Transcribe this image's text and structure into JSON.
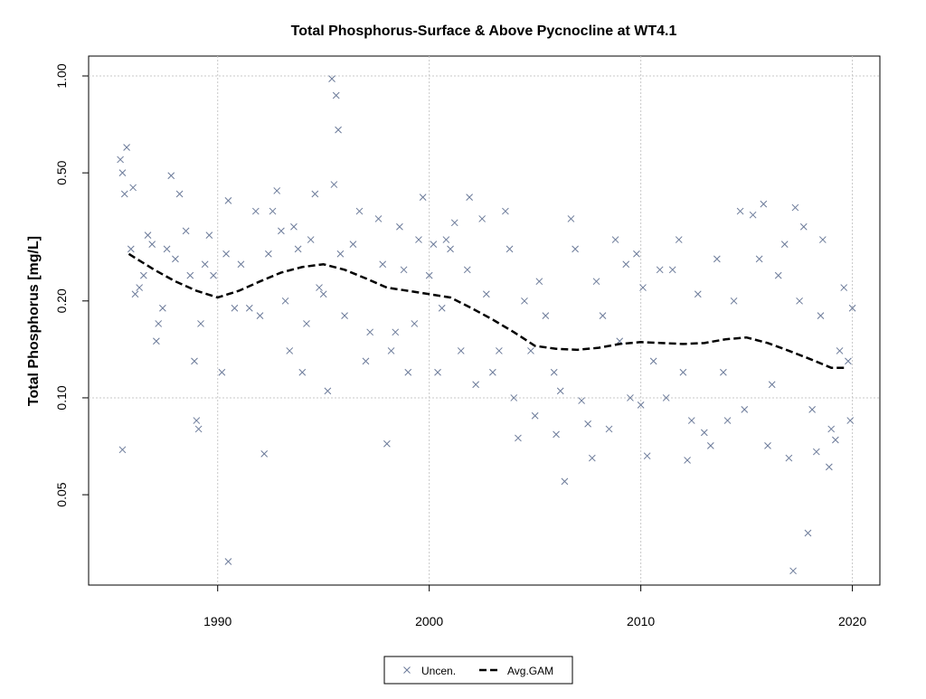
{
  "chart_data": {
    "type": "scatter",
    "title": "Total Phosphorus-Surface & Above Pycnocline at WT4.1",
    "y_label": "Total Phosphorus [mg/L]",
    "xlim": [
      1983.9,
      2021.3
    ],
    "xticks": [
      1990,
      2000,
      2010,
      2020
    ],
    "ylim": [
      0.0262,
      1.153
    ],
    "ylog": true,
    "yticks": [
      0.05,
      {
        "value": 0.1,
        "label": "0.10"
      },
      {
        "value": 0.2,
        "label": "0.20"
      },
      {
        "value": 0.5,
        "label": "0.50"
      },
      {
        "value": 1,
        "label": "1.00"
      }
    ],
    "grid": true,
    "ygrid": [
      0.1,
      1
    ],
    "legend": "bottom",
    "series": [
      {
        "name": "Uncen.",
        "type": "scatter",
        "color": "#6b7a99",
        "x": [
          1985.4,
          1985.5,
          1985.6,
          1985.7,
          1985.5,
          1985.9,
          1986.0,
          1986.1,
          1986.3,
          1986.5,
          1986.7,
          1986.9,
          1987.1,
          1987.2,
          1987.4,
          1987.6,
          1987.8,
          1988.0,
          1988.2,
          1988.5,
          1988.7,
          1988.9,
          1989.0,
          1989.1,
          1989.2,
          1989.4,
          1989.6,
          1989.8,
          1990.2,
          1990.4,
          1990.5,
          1990.5,
          1990.8,
          1991.1,
          1991.5,
          1991.8,
          1992.0,
          1992.2,
          1992.4,
          1992.6,
          1992.8,
          1993.0,
          1993.2,
          1993.4,
          1993.6,
          1993.8,
          1994.0,
          1994.2,
          1994.4,
          1994.6,
          1994.8,
          1995.0,
          1995.2,
          1995.4,
          1995.6,
          1995.7,
          1995.5,
          1995.8,
          1996.0,
          1996.4,
          1996.7,
          1997.0,
          1997.2,
          1997.6,
          1997.8,
          1998.0,
          1998.2,
          1998.4,
          1998.6,
          1998.8,
          1999.0,
          1999.3,
          1999.5,
          1999.7,
          2000.0,
          2000.2,
          2000.4,
          2000.6,
          2000.8,
          2001.0,
          2001.2,
          2001.5,
          2001.8,
          2001.9,
          2002.2,
          2002.5,
          2002.7,
          2003.0,
          2003.3,
          2003.6,
          2003.8,
          2004.0,
          2004.2,
          2004.5,
          2004.8,
          2005.0,
          2005.2,
          2005.5,
          2005.9,
          2006.0,
          2006.2,
          2006.4,
          2006.7,
          2006.9,
          2007.2,
          2007.5,
          2007.7,
          2007.9,
          2008.2,
          2008.5,
          2008.8,
          2009.0,
          2009.3,
          2009.5,
          2009.8,
          2010.0,
          2010.1,
          2010.3,
          2010.6,
          2010.9,
          2011.2,
          2011.5,
          2011.8,
          2012.0,
          2012.2,
          2012.4,
          2012.7,
          2013.0,
          2013.3,
          2013.6,
          2013.9,
          2014.1,
          2014.4,
          2014.7,
          2014.9,
          2015.3,
          2015.6,
          2015.8,
          2016.0,
          2016.2,
          2016.5,
          2016.8,
          2017.0,
          2017.2,
          2017.3,
          2017.5,
          2017.7,
          2017.9,
          2018.1,
          2018.3,
          2018.5,
          2018.6,
          2018.9,
          2019.0,
          2019.2,
          2019.4,
          2019.6,
          2019.8,
          2019.9,
          2020.0
        ],
        "values": [
          0.55,
          0.5,
          0.43,
          0.6,
          0.069,
          0.29,
          0.45,
          0.21,
          0.22,
          0.24,
          0.32,
          0.3,
          0.15,
          0.17,
          0.19,
          0.29,
          0.49,
          0.27,
          0.43,
          0.33,
          0.24,
          0.13,
          0.085,
          0.08,
          0.17,
          0.26,
          0.32,
          0.24,
          0.12,
          0.28,
          0.41,
          0.031,
          0.19,
          0.26,
          0.19,
          0.38,
          0.18,
          0.067,
          0.28,
          0.38,
          0.44,
          0.33,
          0.2,
          0.14,
          0.34,
          0.29,
          0.12,
          0.17,
          0.31,
          0.43,
          0.22,
          0.21,
          0.105,
          0.98,
          0.87,
          0.68,
          0.46,
          0.28,
          0.18,
          0.3,
          0.38,
          0.13,
          0.16,
          0.36,
          0.26,
          0.072,
          0.14,
          0.16,
          0.34,
          0.25,
          0.12,
          0.17,
          0.31,
          0.42,
          0.24,
          0.3,
          0.12,
          0.19,
          0.31,
          0.29,
          0.35,
          0.14,
          0.25,
          0.42,
          0.11,
          0.36,
          0.21,
          0.12,
          0.14,
          0.38,
          0.29,
          0.1,
          0.075,
          0.2,
          0.14,
          0.088,
          0.23,
          0.18,
          0.12,
          0.077,
          0.105,
          0.055,
          0.36,
          0.29,
          0.098,
          0.083,
          0.065,
          0.23,
          0.18,
          0.08,
          0.31,
          0.15,
          0.26,
          0.1,
          0.28,
          0.095,
          0.22,
          0.066,
          0.13,
          0.25,
          0.1,
          0.25,
          0.31,
          0.12,
          0.064,
          0.085,
          0.21,
          0.078,
          0.071,
          0.27,
          0.12,
          0.085,
          0.2,
          0.38,
          0.092,
          0.37,
          0.27,
          0.4,
          0.071,
          0.11,
          0.24,
          0.3,
          0.065,
          0.029,
          0.39,
          0.2,
          0.34,
          0.038,
          0.092,
          0.068,
          0.18,
          0.31,
          0.061,
          0.08,
          0.074,
          0.14,
          0.22,
          0.13,
          0.085,
          0.19
        ]
      },
      {
        "name": "Avg.GAM",
        "type": "line",
        "color": "#000000",
        "x": [
          1985.8,
          1987,
          1988,
          1989,
          1990,
          1991,
          1992,
          1993,
          1994,
          1995,
          1996,
          1997,
          1998,
          1999,
          2000,
          2001,
          2002,
          2003,
          2004,
          2005,
          2006,
          2007,
          2008,
          2009,
          2010,
          2011,
          2012,
          2013,
          2014,
          2015,
          2016,
          2017,
          2018,
          2019,
          2019.7
        ],
        "values": [
          0.28,
          0.25,
          0.23,
          0.215,
          0.205,
          0.215,
          0.23,
          0.245,
          0.255,
          0.26,
          0.25,
          0.235,
          0.22,
          0.215,
          0.21,
          0.205,
          0.19,
          0.175,
          0.16,
          0.145,
          0.142,
          0.141,
          0.143,
          0.147,
          0.149,
          0.148,
          0.147,
          0.148,
          0.152,
          0.154,
          0.148,
          0.14,
          0.132,
          0.124,
          0.124
        ]
      }
    ]
  }
}
